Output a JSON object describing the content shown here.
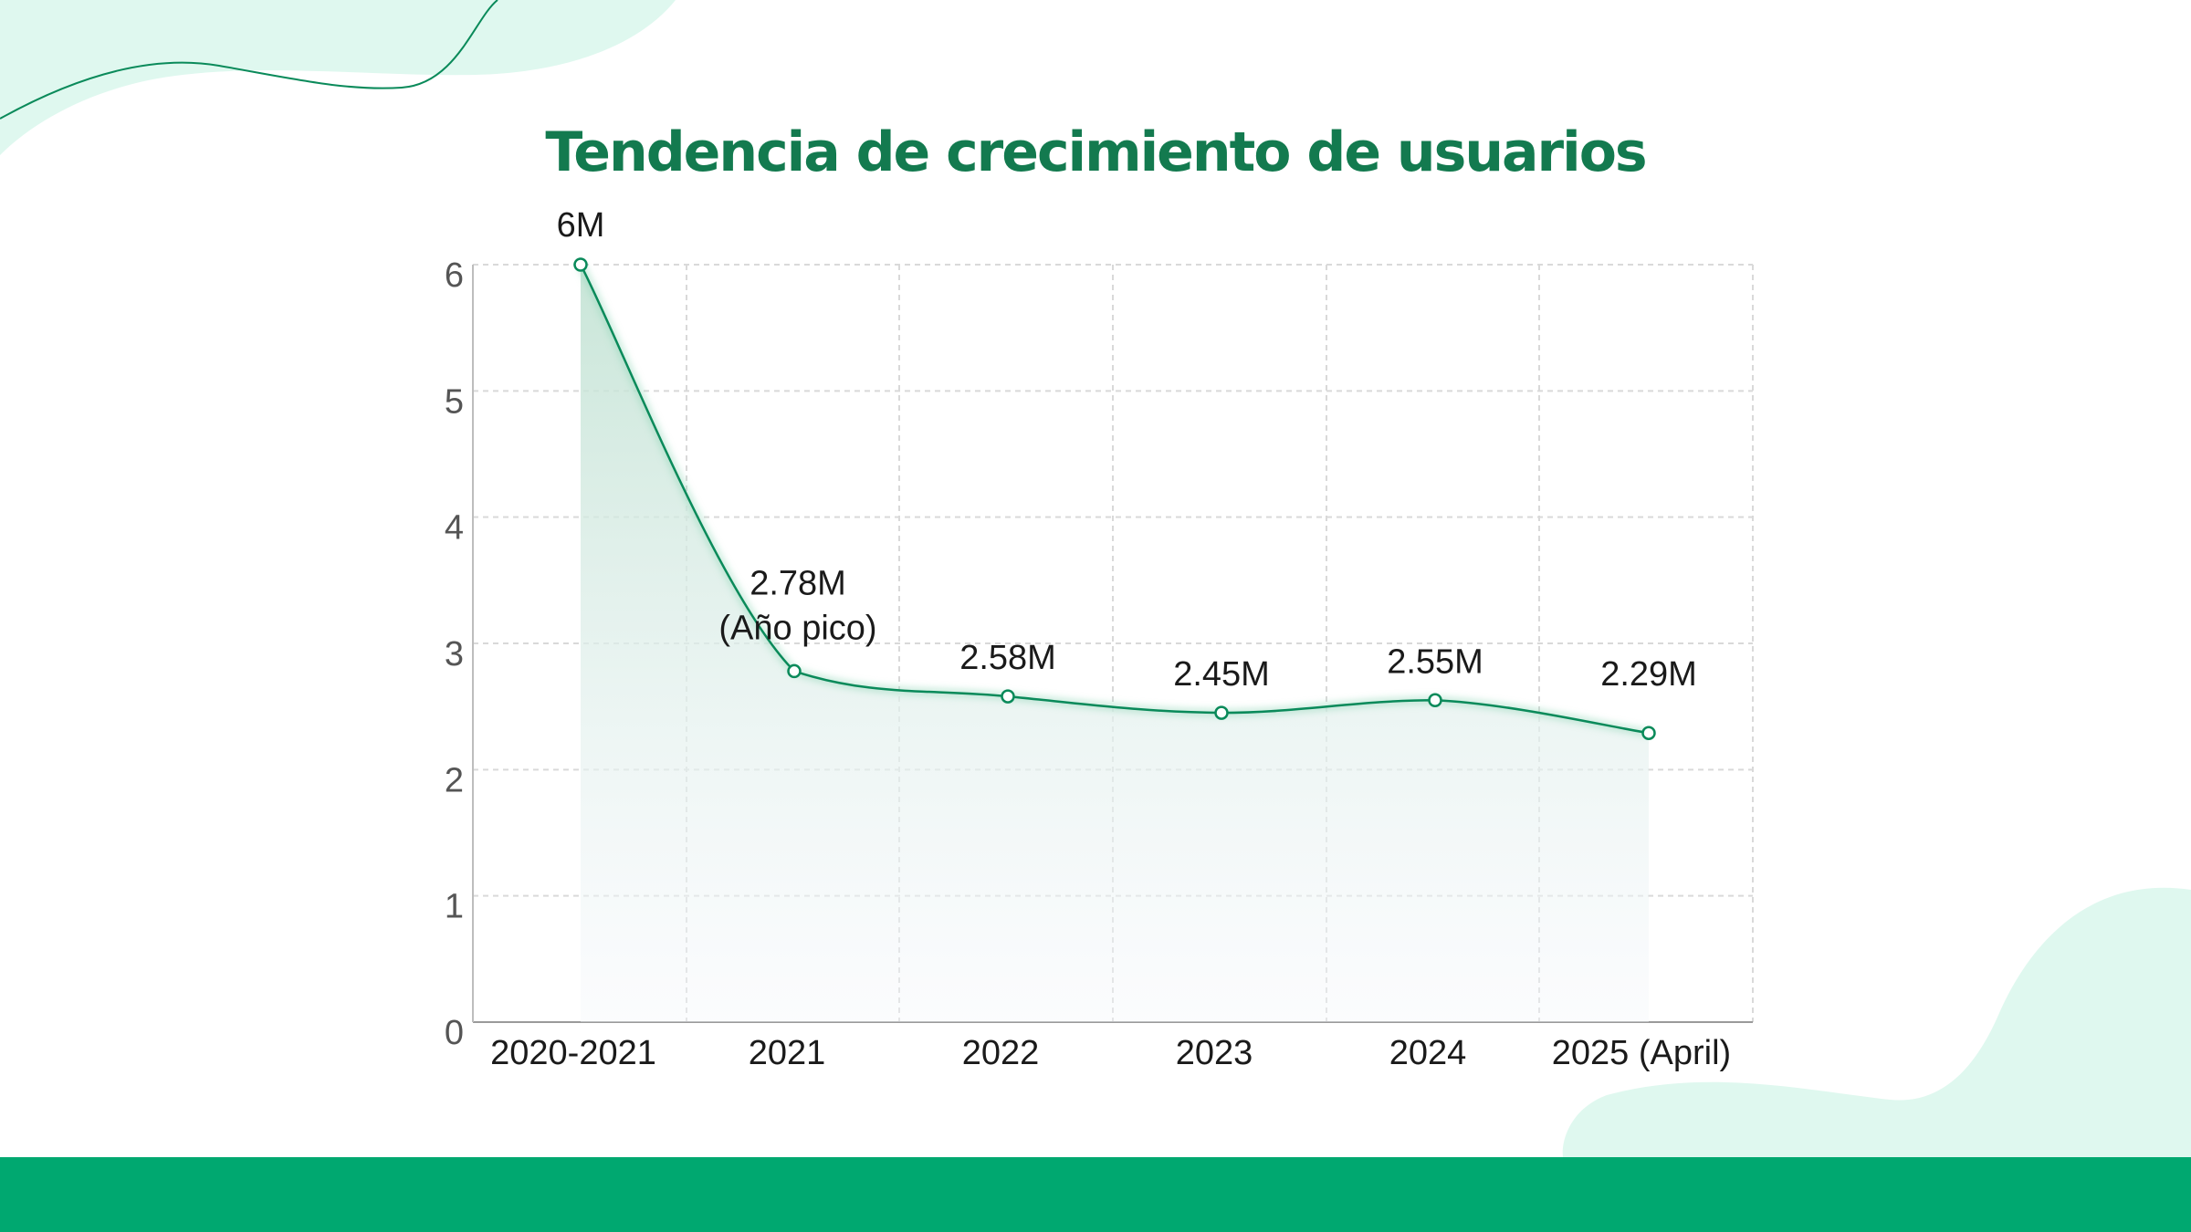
{
  "theme": {
    "accent": "#0a8a5a",
    "title_color": "#137a4f",
    "footer_color": "#00a870",
    "decor_color": "#dff8ef",
    "grid_color": "#d9d9d9"
  },
  "chart_data": {
    "type": "area",
    "title": "Tendencia de crecimiento de usuarios",
    "xlabel": "",
    "ylabel": "",
    "categories": [
      "2020-2021",
      "2021",
      "2022",
      "2023",
      "2024",
      "2025 (April)"
    ],
    "series": [
      {
        "values": [
          6.0,
          2.78,
          2.58,
          2.45,
          2.55,
          2.29
        ],
        "labels": [
          [
            "6M"
          ],
          [
            "2.78M",
            "(Año pico)"
          ],
          [
            "2.58M"
          ],
          [
            "2.45M"
          ],
          [
            "2.55M"
          ],
          [
            "2.29M"
          ]
        ]
      }
    ],
    "ylim": [
      0,
      6
    ],
    "yticks": [
      0,
      1,
      2,
      3,
      4,
      5,
      6
    ],
    "grid": true,
    "legend": "none"
  }
}
